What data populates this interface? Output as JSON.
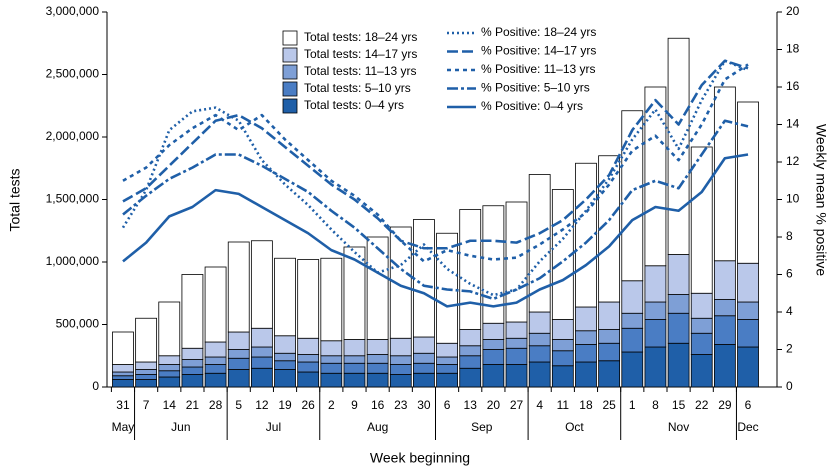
{
  "chart_data": {
    "type": "bar",
    "xlabel": "Week beginning",
    "ylabel": "Total tests",
    "y2label": "Weekly mean % positive",
    "categories": [
      "31",
      "7",
      "14",
      "21",
      "28",
      "5",
      "12",
      "19",
      "26",
      "2",
      "9",
      "16",
      "23",
      "30",
      "6",
      "13",
      "20",
      "27",
      "4",
      "11",
      "18",
      "25",
      "1",
      "8",
      "15",
      "22",
      "29",
      "6"
    ],
    "months": [
      "May",
      "Jun",
      "Jul",
      "Aug",
      "Sep",
      "Oct",
      "Nov",
      "Dec"
    ],
    "ylim": [
      0,
      3000000
    ],
    "yticks": [
      0,
      {
        "value": 500000,
        "label": "500,000"
      },
      {
        "value": 1000000,
        "label": "1,000,000"
      },
      {
        "value": 1500000,
        "label": "1,500,000"
      },
      {
        "value": 2000000,
        "label": "2,000,000"
      },
      {
        "value": 2500000,
        "label": "2,500,000"
      },
      {
        "value": 3000000,
        "label": "3,000,000"
      }
    ],
    "y2lim": [
      0,
      20
    ],
    "y2ticks": [
      0,
      2,
      4,
      6,
      8,
      10,
      12,
      14,
      16,
      18,
      20
    ],
    "series": [
      {
        "name": "Total tests: 0–4 yrs",
        "type": "bar",
        "color": "#1f5fa8",
        "values": [
          60000,
          60000,
          80000,
          100000,
          110000,
          140000,
          150000,
          140000,
          120000,
          110000,
          110000,
          110000,
          100000,
          110000,
          110000,
          150000,
          180000,
          180000,
          200000,
          170000,
          200000,
          210000,
          280000,
          320000,
          350000,
          260000,
          340000,
          320000
        ]
      },
      {
        "name": "Total tests: 5–10 yrs",
        "type": "bar",
        "color": "#4a7dc4",
        "values": [
          30000,
          40000,
          50000,
          60000,
          70000,
          90000,
          90000,
          70000,
          80000,
          80000,
          80000,
          80000,
          80000,
          80000,
          70000,
          100000,
          120000,
          130000,
          130000,
          120000,
          140000,
          140000,
          190000,
          220000,
          240000,
          170000,
          230000,
          220000
        ]
      },
      {
        "name": "Total tests: 11–13 yrs",
        "type": "bar",
        "color": "#7e9fd6",
        "values": [
          30000,
          40000,
          50000,
          60000,
          60000,
          70000,
          80000,
          60000,
          60000,
          60000,
          60000,
          70000,
          70000,
          80000,
          60000,
          80000,
          80000,
          80000,
          100000,
          90000,
          110000,
          110000,
          120000,
          140000,
          150000,
          120000,
          130000,
          140000
        ]
      },
      {
        "name": "Total tests: 14–17 yrs",
        "type": "bar",
        "color": "#bac8ea",
        "values": [
          60000,
          60000,
          70000,
          90000,
          120000,
          140000,
          150000,
          140000,
          130000,
          120000,
          130000,
          120000,
          140000,
          130000,
          110000,
          130000,
          130000,
          130000,
          170000,
          160000,
          190000,
          220000,
          260000,
          290000,
          320000,
          200000,
          310000,
          310000
        ]
      },
      {
        "name": "Total tests: 18–24 yrs",
        "type": "bar",
        "color": "#ffffff",
        "values": [
          260000,
          350000,
          430000,
          590000,
          600000,
          720000,
          700000,
          620000,
          630000,
          660000,
          740000,
          820000,
          890000,
          940000,
          880000,
          960000,
          940000,
          960000,
          1100000,
          1040000,
          1150000,
          1170000,
          1360000,
          1430000,
          1730000,
          1170000,
          1390000,
          1290000
        ]
      },
      {
        "name": "% Positive: 0–4 yrs",
        "type": "line",
        "axis": "y2",
        "color": "#1f5fa8",
        "linestyle": "solid",
        "values": [
          6.7,
          7.7,
          9.1,
          9.6,
          10.5,
          10.3,
          9.6,
          8.9,
          8.2,
          7.3,
          6.8,
          6.1,
          5.4,
          5.0,
          4.3,
          4.5,
          4.3,
          4.5,
          5.2,
          5.7,
          6.5,
          7.5,
          8.9,
          9.6,
          9.4,
          10.4,
          12.2,
          12.4
        ]
      },
      {
        "name": "% Positive: 5–10 yrs",
        "type": "line",
        "axis": "y2",
        "color": "#1f5fa8",
        "linestyle": "dashdot",
        "values": [
          9.2,
          10.2,
          11.1,
          11.7,
          12.4,
          12.4,
          11.8,
          11.1,
          10.4,
          9.4,
          8.5,
          7.4,
          6.3,
          5.4,
          5.2,
          5.1,
          4.7,
          5.2,
          5.8,
          6.7,
          7.7,
          8.9,
          10.5,
          11.0,
          10.6,
          12.4,
          14.2,
          13.9
        ]
      },
      {
        "name": "% Positive: 11–13 yrs",
        "type": "line",
        "axis": "y2",
        "color": "#1f5fa8",
        "linestyle": "shortdash",
        "values": [
          11.0,
          11.7,
          12.9,
          13.8,
          14.5,
          13.7,
          14.5,
          13.2,
          12.1,
          11.0,
          10.2,
          9.2,
          7.8,
          6.7,
          7.3,
          7.0,
          6.8,
          6.9,
          7.6,
          8.4,
          9.3,
          10.8,
          12.6,
          13.4,
          12.1,
          14.0,
          16.4,
          17.2
        ]
      },
      {
        "name": "% Positive: 14–17 yrs",
        "type": "line",
        "axis": "y2",
        "color": "#1f5fa8",
        "linestyle": "dashed",
        "values": [
          9.9,
          10.6,
          11.8,
          13.0,
          14.2,
          14.5,
          13.8,
          12.8,
          11.8,
          10.8,
          10.0,
          9.0,
          7.8,
          7.4,
          7.4,
          7.8,
          7.8,
          7.7,
          8.2,
          8.9,
          10.0,
          11.3,
          13.7,
          15.3,
          14.0,
          16.1,
          17.4,
          17.0
        ]
      },
      {
        "name": "% Positive: 18–24 yrs",
        "type": "line",
        "axis": "y2",
        "color": "#1f5fa8",
        "linestyle": "dotted",
        "values": [
          8.5,
          10.5,
          13.7,
          14.7,
          14.9,
          14.2,
          12.1,
          10.8,
          9.7,
          8.4,
          7.2,
          6.1,
          6.5,
          7.6,
          6.3,
          5.5,
          4.9,
          5.2,
          6.7,
          7.9,
          9.4,
          11.1,
          13.2,
          14.8,
          12.7,
          15.3,
          17.4,
          16.9
        ]
      }
    ]
  }
}
